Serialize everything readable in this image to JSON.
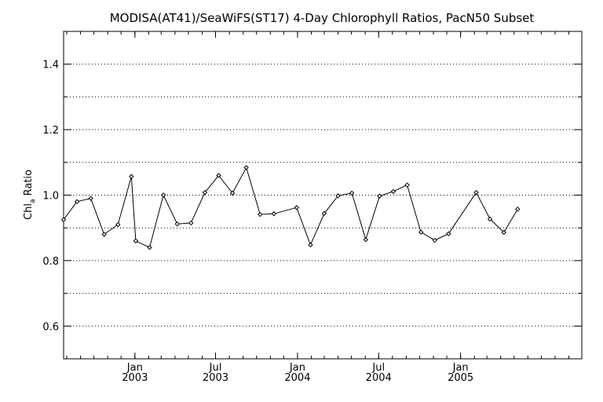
{
  "chart_data": {
    "type": "line",
    "title": "MODISA(AT41)/SeaWiFS(ST17) 4-Day Chlorophyll Ratios, PacN50 Subset",
    "ylabel": {
      "main": "Chl",
      "sub": "a",
      "rest": " Ratio"
    },
    "xlabel": "",
    "ylim": [
      0.5,
      1.5
    ],
    "grid": {
      "horizontal": true,
      "vertical": false,
      "style": "dotted"
    },
    "y_ticks": [
      {
        "value": 0.6,
        "label": "0.6"
      },
      {
        "value": 0.8,
        "label": "0.8"
      },
      {
        "value": 1.0,
        "label": "1.0"
      },
      {
        "value": 1.2,
        "label": "1.2"
      },
      {
        "value": 1.4,
        "label": "1.4"
      }
    ],
    "y_minor_ticks": [
      0.7,
      0.9,
      1.1,
      1.3
    ],
    "x_range": [
      "2002-07-25",
      "2005-09-30"
    ],
    "x_ticks": [
      {
        "date": "2003-01-01",
        "month": "Jan",
        "year": "2003"
      },
      {
        "date": "2003-07-01",
        "month": "Jul",
        "year": "2003"
      },
      {
        "date": "2004-01-01",
        "month": "Jan",
        "year": "2004"
      },
      {
        "date": "2004-07-01",
        "month": "Jul",
        "year": "2004"
      },
      {
        "date": "2005-01-01",
        "month": "Jan",
        "year": "2005"
      }
    ],
    "marker": "diamond",
    "series": [
      {
        "color": "#000000",
        "points": [
          {
            "x": "2002-07-25",
            "y": 0.925
          },
          {
            "x": "2002-08-24",
            "y": 0.98
          },
          {
            "x": "2002-09-24",
            "y": 0.99
          },
          {
            "x": "2002-10-24",
            "y": 0.88
          },
          {
            "x": "2002-11-24",
            "y": 0.91
          },
          {
            "x": "2002-12-24",
            "y": 1.057
          },
          {
            "x": "2003-01-03",
            "y": 0.86
          },
          {
            "x": "2003-02-03",
            "y": 0.84
          },
          {
            "x": "2003-03-06",
            "y": 1.0
          },
          {
            "x": "2003-04-06",
            "y": 0.912
          },
          {
            "x": "2003-05-07",
            "y": 0.915
          },
          {
            "x": "2003-06-07",
            "y": 1.008
          },
          {
            "x": "2003-07-08",
            "y": 1.06
          },
          {
            "x": "2003-08-08",
            "y": 1.006
          },
          {
            "x": "2003-09-08",
            "y": 1.084
          },
          {
            "x": "2003-10-09",
            "y": 0.941
          },
          {
            "x": "2003-11-09",
            "y": 0.943
          },
          {
            "x": "2003-12-30",
            "y": 0.962
          },
          {
            "x": "2004-01-30",
            "y": 0.848
          },
          {
            "x": "2004-03-01",
            "y": 0.944
          },
          {
            "x": "2004-04-01",
            "y": 0.998
          },
          {
            "x": "2004-05-02",
            "y": 1.006
          },
          {
            "x": "2004-06-02",
            "y": 0.864
          },
          {
            "x": "2004-07-03",
            "y": 0.997
          },
          {
            "x": "2004-08-03",
            "y": 1.011
          },
          {
            "x": "2004-09-03",
            "y": 1.031
          },
          {
            "x": "2004-10-04",
            "y": 0.887
          },
          {
            "x": "2004-11-04",
            "y": 0.862
          },
          {
            "x": "2004-12-05",
            "y": 0.882
          },
          {
            "x": "2005-02-05",
            "y": 1.008
          },
          {
            "x": "2005-03-08",
            "y": 0.927
          },
          {
            "x": "2005-04-08",
            "y": 0.886
          },
          {
            "x": "2005-05-09",
            "y": 0.957
          }
        ]
      }
    ]
  }
}
